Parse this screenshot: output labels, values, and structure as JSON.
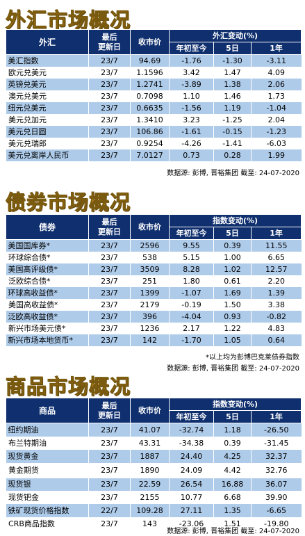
{
  "forex": {
    "title": "外汇市场概况",
    "headers": {
      "name": "外汇",
      "date": "最后\n更新日",
      "close": "收市价",
      "change": "外汇变动(%)",
      "ytd": "年初至今",
      "d5": "5日",
      "y1": "1年"
    },
    "rows": [
      {
        "name": "美汇指数",
        "date": "23/7",
        "close": "94.69",
        "ytd": "-1.76",
        "d5": "-1.30",
        "y1": "-3.11"
      },
      {
        "name": "欧元兑美元",
        "date": "23/7",
        "close": "1.1596",
        "ytd": "3.42",
        "d5": "1.47",
        "y1": "4.09"
      },
      {
        "name": "英镑兑美元",
        "date": "23/7",
        "close": "1.2741",
        "ytd": "-3.89",
        "d5": "1.38",
        "y1": "2.06"
      },
      {
        "name": "澳元兑美元",
        "date": "23/7",
        "close": "0.7098",
        "ytd": "1.10",
        "d5": "1.46",
        "y1": "1.73"
      },
      {
        "name": "纽元兑美元",
        "date": "23/7",
        "close": "0.6635",
        "ytd": "-1.56",
        "d5": "1.19",
        "y1": "-1.04"
      },
      {
        "name": "美元兑加元",
        "date": "23/7",
        "close": "1.3410",
        "ytd": "3.23",
        "d5": "-1.25",
        "y1": "2.04"
      },
      {
        "name": "美元兑日圆",
        "date": "23/7",
        "close": "106.86",
        "ytd": "-1.61",
        "d5": "-0.15",
        "y1": "-1.23"
      },
      {
        "name": "美元兑瑞郎",
        "date": "23/7",
        "close": "0.9254",
        "ytd": "-4.26",
        "d5": "-1.41",
        "y1": "-6.03"
      },
      {
        "name": "美元兑离岸人民币",
        "date": "23/7",
        "close": "7.0127",
        "ytd": "0.73",
        "d5": "0.28",
        "y1": "1.99"
      }
    ],
    "source": "数据源: 彭博, 晋裕集团 截至: 24-07-2020"
  },
  "bonds": {
    "title": "债券市场概况",
    "headers": {
      "name": "债劵",
      "date": "最后\n更新日",
      "close": "收市价",
      "change": "指数变动(%)",
      "ytd": "年初至今",
      "d5": "5日",
      "y1": "1年"
    },
    "rows": [
      {
        "name": "美国国库券*",
        "date": "23/7",
        "close": "2596",
        "ytd": "9.55",
        "d5": "0.39",
        "y1": "11.55"
      },
      {
        "name": "环球综合债*",
        "date": "23/7",
        "close": "538",
        "ytd": "5.15",
        "d5": "1.00",
        "y1": "6.65"
      },
      {
        "name": "美国高评级债*",
        "date": "23/7",
        "close": "3509",
        "ytd": "8.28",
        "d5": "1.02",
        "y1": "12.57"
      },
      {
        "name": "泛欧综合债*",
        "date": "23/7",
        "close": "251",
        "ytd": "1.80",
        "d5": "0.61",
        "y1": "2.20"
      },
      {
        "name": "环球高收益债*",
        "date": "23/7",
        "close": "1399",
        "ytd": "-1.07",
        "d5": "1.69",
        "y1": "1.39"
      },
      {
        "name": "美国高收益债*",
        "date": "23/7",
        "close": "2179",
        "ytd": "-0.19",
        "d5": "1.50",
        "y1": "3.38"
      },
      {
        "name": "泛欧高收益债*",
        "date": "23/7",
        "close": "396",
        "ytd": "-4.04",
        "d5": "0.93",
        "y1": "-0.82"
      },
      {
        "name": "新兴市场美元债*",
        "date": "23/7",
        "close": "1236",
        "ytd": "2.17",
        "d5": "1.22",
        "y1": "4.83"
      },
      {
        "name": "新兴市场本地货币*",
        "date": "23/7",
        "close": "142",
        "ytd": "-1.70",
        "d5": "1.05",
        "y1": "0.64"
      }
    ],
    "footnote": "*以上均为彭博巴克莱债券指数",
    "source": "数据源: 彭博, 晋裕集团 截至: 24-07-2020"
  },
  "commodities": {
    "title": "商品市场概况",
    "headers": {
      "name": "商品",
      "date": "最后\n更新日",
      "close": "收市价",
      "change": "指数变动(%)",
      "ytd": "年初至今",
      "d5": "5日",
      "y1": "1年"
    },
    "rows": [
      {
        "name": "纽约期油",
        "date": "23/7",
        "close": "41.07",
        "ytd": "-32.74",
        "d5": "1.18",
        "y1": "-26.50"
      },
      {
        "name": "布兰特期油",
        "date": "23/7",
        "close": "43.31",
        "ytd": "-34.38",
        "d5": "0.39",
        "y1": "-31.45"
      },
      {
        "name": "现货黄金",
        "date": "23/7",
        "close": "1887",
        "ytd": "24.40",
        "d5": "4.25",
        "y1": "32.37"
      },
      {
        "name": "黄金期货",
        "date": "23/7",
        "close": "1890",
        "ytd": "24.09",
        "d5": "4.42",
        "y1": "32.76"
      },
      {
        "name": "现货银",
        "date": "23/7",
        "close": "22.59",
        "ytd": "26.54",
        "d5": "16.88",
        "y1": "36.07"
      },
      {
        "name": "现货钯金",
        "date": "23/7",
        "close": "2155",
        "ytd": "10.77",
        "d5": "6.68",
        "y1": "39.90"
      },
      {
        "name": "铁矿现货价格指数",
        "date": "22/7",
        "close": "109.28",
        "ytd": "27.11",
        "d5": "1.35",
        "y1": "-6.65"
      },
      {
        "name": "CRB商品指数",
        "date": "23/7",
        "close": "143",
        "ytd": "-23.06",
        "d5": "1.51",
        "y1": "-19.80"
      }
    ],
    "source": "数据源: 彭博, 晋裕集团 截至: 24-07-2020"
  }
}
